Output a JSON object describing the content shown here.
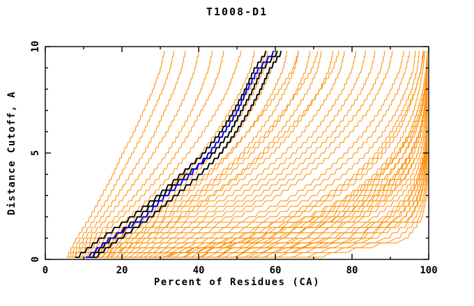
{
  "chart_data": {
    "type": "line",
    "title": "T1008-D1",
    "xlabel": "Percent of Residues (CA)",
    "ylabel": "Distance Cutoff, A",
    "xlim": [
      0,
      100
    ],
    "ylim": [
      0,
      10
    ],
    "grid": "off",
    "legend": "none",
    "x_major_ticks": [
      0,
      20,
      40,
      60,
      80,
      100
    ],
    "x_minor_ticks": [
      10,
      30,
      50,
      70,
      90
    ],
    "y_major_ticks": [
      0,
      5,
      10
    ],
    "y_minor_ticks": [
      1,
      2,
      3,
      4,
      6,
      7,
      8,
      9
    ],
    "colors": {
      "orange": "#FF8C00",
      "black": "#000000",
      "blue": "#0000EE",
      "axis": "#000000",
      "background": "#FFFFFF"
    },
    "cutoffs": [
      0.1,
      1,
      2,
      3,
      4,
      5,
      6,
      7,
      8,
      9,
      9.8
    ],
    "series": [
      {
        "name": "orange-01",
        "color": "orange",
        "percents": [
          5.5,
          8,
          11.5,
          14.5,
          17.5,
          20,
          23,
          25.5,
          28,
          30,
          31
        ]
      },
      {
        "name": "orange-02",
        "color": "orange",
        "percents": [
          6,
          9,
          13,
          16.5,
          19.5,
          22.5,
          25.5,
          28,
          30.5,
          32.5,
          33.5
        ]
      },
      {
        "name": "orange-03",
        "color": "orange",
        "percents": [
          6.5,
          10,
          14.5,
          18.5,
          22,
          25.5,
          28.5,
          31,
          33.5,
          35.5,
          36.5
        ]
      },
      {
        "name": "orange-04",
        "color": "orange",
        "percents": [
          7,
          11,
          16,
          20.5,
          24.5,
          28,
          31.5,
          34.5,
          37,
          39,
          40
        ]
      },
      {
        "name": "orange-05",
        "color": "orange",
        "percents": [
          7,
          12,
          18,
          23,
          27.5,
          31.5,
          35,
          38,
          40.5,
          42.5,
          43.5
        ]
      },
      {
        "name": "orange-06",
        "color": "orange",
        "percents": [
          8,
          13,
          19.5,
          25,
          30,
          34,
          37.5,
          40.5,
          43.5,
          45.5,
          46.5
        ]
      },
      {
        "name": "orange-07",
        "color": "orange",
        "percents": [
          8.5,
          14.5,
          21.5,
          27.5,
          32.5,
          37,
          41,
          44.5,
          47.5,
          49.5,
          51
        ]
      },
      {
        "name": "orange-08",
        "color": "orange",
        "percents": [
          9,
          15.5,
          23.5,
          30,
          35.5,
          40.5,
          44.5,
          48,
          51,
          53.5,
          54.5
        ]
      },
      {
        "name": "orange-09",
        "color": "orange",
        "percents": [
          9.5,
          17,
          25.5,
          32.5,
          38.5,
          43.5,
          48,
          51.5,
          54.5,
          57,
          58
        ]
      },
      {
        "name": "orange-10",
        "color": "orange",
        "percents": [
          10,
          17,
          26,
          33.5,
          40,
          45.5,
          50,
          53.5,
          56.5,
          59,
          60
        ]
      },
      {
        "name": "orange-11",
        "color": "orange",
        "percents": [
          10,
          18,
          28,
          36,
          42.5,
          48,
          52.5,
          56.5,
          59.5,
          62,
          63
        ]
      },
      {
        "name": "orange-12",
        "color": "orange",
        "percents": [
          11,
          19,
          29.5,
          38,
          45,
          51,
          55.5,
          59.5,
          62.5,
          65,
          66
        ]
      },
      {
        "name": "orange-13",
        "color": "orange",
        "percents": [
          11,
          20,
          31.5,
          40.5,
          47.5,
          53.5,
          58.5,
          62.5,
          65.5,
          68,
          69
        ]
      },
      {
        "name": "orange-14",
        "color": "orange",
        "percents": [
          12,
          21.5,
          33.5,
          42.5,
          50,
          56,
          61,
          65,
          68.5,
          71,
          72
        ]
      },
      {
        "name": "orange-15",
        "color": "orange",
        "percents": [
          12,
          23,
          35.5,
          45,
          52.5,
          59,
          64,
          68,
          71.5,
          74,
          75
        ]
      },
      {
        "name": "orange-16",
        "color": "orange",
        "percents": [
          13,
          24.5,
          37.5,
          47.5,
          55.5,
          62,
          67,
          71,
          74.5,
          77,
          78
        ]
      },
      {
        "name": "orange-17",
        "color": "orange",
        "percents": [
          14,
          26,
          40,
          50,
          58,
          64.5,
          70,
          74,
          77.5,
          80,
          81
        ]
      },
      {
        "name": "orange-18",
        "color": "orange",
        "percents": [
          14,
          27.5,
          42,
          52.5,
          60.5,
          67,
          72.5,
          76.5,
          80,
          82.5,
          83.5
        ]
      },
      {
        "name": "orange-19",
        "color": "orange",
        "percents": [
          15,
          29,
          44.5,
          55,
          63,
          69.5,
          75,
          79,
          82.5,
          85,
          86
        ]
      },
      {
        "name": "orange-20",
        "color": "orange",
        "percents": [
          16,
          31,
          47,
          57.5,
          65.5,
          72,
          77,
          81.5,
          85,
          87.5,
          88.5
        ]
      },
      {
        "name": "orange-21",
        "color": "orange",
        "percents": [
          17,
          33,
          49.5,
          60,
          68,
          74.5,
          79.5,
          84,
          87,
          89.5,
          90.5
        ]
      },
      {
        "name": "orange-22",
        "color": "orange",
        "percents": [
          10.5,
          16.5,
          24,
          30,
          36,
          41,
          45.5,
          49.5,
          53,
          56,
          57.5
        ]
      },
      {
        "name": "orange-23",
        "color": "orange",
        "percents": [
          11.5,
          18.5,
          27,
          34.5,
          41.5,
          47.5,
          52.5,
          57,
          61,
          64.5,
          66
        ]
      },
      {
        "name": "orange-24",
        "color": "orange",
        "percents": [
          13.5,
          22,
          31,
          39,
          46,
          52,
          57.5,
          62,
          66,
          69.5,
          71
        ]
      },
      {
        "name": "orange-25",
        "color": "orange",
        "percents": [
          15.5,
          25,
          35,
          43,
          50.5,
          57,
          62.5,
          67.5,
          71.5,
          75,
          76.5
        ]
      },
      {
        "name": "orange-26",
        "color": "orange",
        "percents": [
          18,
          35,
          53,
          64,
          72,
          78,
          83,
          87,
          90,
          92.5,
          93.5
        ]
      },
      {
        "name": "orange-27",
        "color": "orange",
        "percents": [
          19,
          37.5,
          55.5,
          66.5,
          74.5,
          80.5,
          85.5,
          89,
          92,
          94,
          95
        ]
      },
      {
        "name": "orange-28",
        "color": "orange",
        "percents": [
          20,
          40,
          58.5,
          69.5,
          77.5,
          83.5,
          88,
          91.5,
          94,
          96,
          96.5
        ]
      },
      {
        "name": "orange-29",
        "color": "orange",
        "percents": [
          21,
          42.5,
          61.5,
          72.5,
          80.5,
          86,
          90,
          93,
          95.5,
          97,
          97.5
        ]
      },
      {
        "name": "orange-30",
        "color": "orange",
        "percents": [
          22,
          45,
          64.5,
          75.5,
          83,
          88,
          92,
          94.5,
          96.5,
          98,
          98.5
        ]
      },
      {
        "name": "orange-31",
        "color": "orange",
        "percents": [
          23,
          47.5,
          67.5,
          78.5,
          85.5,
          90.5,
          93.5,
          96,
          97.5,
          98.5,
          99
        ]
      },
      {
        "name": "orange-32",
        "color": "orange",
        "percents": [
          24,
          50,
          70.5,
          81,
          87.5,
          92,
          95,
          97,
          98.5,
          99.3,
          99.6
        ]
      },
      {
        "name": "orange-33",
        "color": "orange",
        "percents": [
          25,
          52.5,
          73.5,
          83.5,
          89.5,
          93.5,
          96,
          98,
          99,
          99.6,
          99.8
        ]
      },
      {
        "name": "orange-34",
        "color": "orange",
        "percents": [
          26,
          55,
          76,
          86,
          91.5,
          95,
          97.5,
          98.7,
          99.4,
          99.8,
          100
        ]
      },
      {
        "name": "orange-35",
        "color": "orange",
        "percents": [
          27,
          57.5,
          78.5,
          88,
          93,
          96,
          98,
          99.2,
          99.7,
          100,
          100
        ]
      },
      {
        "name": "orange-36",
        "color": "orange",
        "percents": [
          28,
          50,
          68,
          79,
          86.5,
          91.5,
          95,
          97,
          98.5,
          99.4,
          99.7
        ]
      },
      {
        "name": "orange-37",
        "color": "orange",
        "percents": [
          30,
          53,
          71.5,
          82,
          89,
          93.5,
          96.5,
          98.2,
          99.2,
          99.7,
          100
        ]
      },
      {
        "name": "orange-38",
        "color": "orange",
        "percents": [
          32,
          56,
          74.5,
          84.5,
          91,
          95,
          97.5,
          98.8,
          99.5,
          99.9,
          100
        ]
      },
      {
        "name": "orange-39",
        "color": "orange",
        "percents": [
          34,
          59,
          77.5,
          87,
          92.5,
          96,
          98,
          99.2,
          99.7,
          100,
          100
        ]
      },
      {
        "name": "orange-40",
        "color": "orange",
        "percents": [
          36,
          62,
          80.5,
          89,
          94,
          97,
          98.6,
          99.5,
          99.9,
          100,
          100
        ]
      },
      {
        "name": "orange-41",
        "color": "orange",
        "percents": [
          38,
          65,
          83,
          91,
          95.5,
          97.8,
          99,
          99.6,
          100,
          100,
          100
        ]
      },
      {
        "name": "orange-42",
        "color": "orange",
        "percents": [
          40,
          68,
          85.5,
          92.5,
          96.5,
          98.4,
          99.3,
          99.8,
          100,
          100,
          100
        ]
      },
      {
        "name": "orange-43",
        "color": "orange",
        "percents": [
          42,
          71,
          88,
          94,
          97.2,
          98.8,
          99.5,
          99.9,
          100,
          100,
          100
        ]
      },
      {
        "name": "orange-44",
        "color": "orange",
        "percents": [
          44.5,
          74,
          90,
          95.2,
          97.8,
          99.1,
          99.7,
          100,
          100,
          100,
          100
        ]
      },
      {
        "name": "orange-45",
        "color": "orange",
        "percents": [
          47,
          77,
          92,
          96.2,
          98.3,
          99.4,
          99.8,
          100,
          100,
          100,
          100
        ]
      },
      {
        "name": "orange-46",
        "color": "orange",
        "percents": [
          49.5,
          80,
          93.5,
          97,
          98.7,
          99.5,
          99.9,
          100,
          100,
          100,
          100
        ]
      },
      {
        "name": "orange-47",
        "color": "orange",
        "percents": [
          52,
          83,
          95,
          97.8,
          99,
          99.7,
          100,
          100,
          100,
          100,
          100
        ]
      },
      {
        "name": "orange-48",
        "color": "orange",
        "percents": [
          29,
          48,
          63,
          74,
          81.5,
          87,
          91,
          94,
          96.5,
          98,
          98.7
        ]
      },
      {
        "name": "orange-49",
        "color": "orange",
        "percents": [
          33,
          54,
          70,
          80,
          87,
          92,
          95.5,
          97.6,
          98.9,
          99.6,
          99.9
        ]
      },
      {
        "name": "orange-50",
        "color": "orange",
        "percents": [
          37,
          60,
          76,
          85.5,
          91.5,
          95.3,
          97.6,
          98.9,
          99.6,
          100,
          100
        ]
      },
      {
        "name": "orange-51",
        "color": "orange",
        "percents": [
          41,
          66,
          81.5,
          89.5,
          94.3,
          97,
          98.6,
          99.4,
          99.9,
          100,
          100
        ]
      },
      {
        "name": "orange-52",
        "color": "orange",
        "percents": [
          45,
          73,
          89,
          95,
          97.6,
          98.9,
          99.5,
          99.9,
          100,
          100,
          100
        ]
      },
      {
        "name": "orange-53",
        "color": "orange",
        "percents": [
          48.5,
          77,
          91.5,
          96.2,
          98.2,
          99.2,
          99.7,
          100,
          100,
          100,
          100
        ]
      },
      {
        "name": "orange-54",
        "color": "orange",
        "percents": [
          52.5,
          81,
          93.5,
          97.2,
          98.7,
          99.4,
          99.8,
          100,
          100,
          100,
          100
        ]
      },
      {
        "name": "orange-55",
        "color": "orange",
        "percents": [
          56,
          85,
          95.3,
          98,
          99.1,
          99.6,
          99.9,
          100,
          100,
          100,
          100
        ]
      },
      {
        "name": "orange-56",
        "color": "orange",
        "percents": [
          60,
          88.5,
          96.5,
          98.6,
          99.4,
          99.8,
          100,
          100,
          100,
          100,
          100
        ]
      },
      {
        "name": "orange-57",
        "color": "orange",
        "percents": [
          64,
          91.5,
          97.5,
          99,
          99.6,
          99.9,
          100,
          100,
          100,
          100,
          100
        ]
      },
      {
        "name": "orange-58",
        "color": "orange",
        "percents": [
          68,
          94,
          98.2,
          99.4,
          99.8,
          100,
          100,
          100,
          100,
          100,
          100
        ]
      },
      {
        "name": "black-1",
        "color": "black",
        "percents": [
          7.8,
          14,
          22,
          29,
          35,
          41,
          45.5,
          49,
          52,
          54.5,
          57.5
        ]
      },
      {
        "name": "black-2",
        "color": "black",
        "percents": [
          11.5,
          17,
          24,
          30,
          36.5,
          43.5,
          48,
          51,
          54,
          56.5,
          60.5
        ]
      },
      {
        "name": "black-3",
        "color": "black",
        "percents": [
          12.5,
          19,
          27,
          33.5,
          40,
          45.5,
          49.5,
          53,
          56,
          58.5,
          61.5
        ]
      },
      {
        "name": "blue-1",
        "color": "blue",
        "percents": [
          10.5,
          16.5,
          25.5,
          31,
          37.5,
          42.5,
          46.5,
          50,
          52.5,
          55.5,
          59.5
        ]
      }
    ]
  }
}
